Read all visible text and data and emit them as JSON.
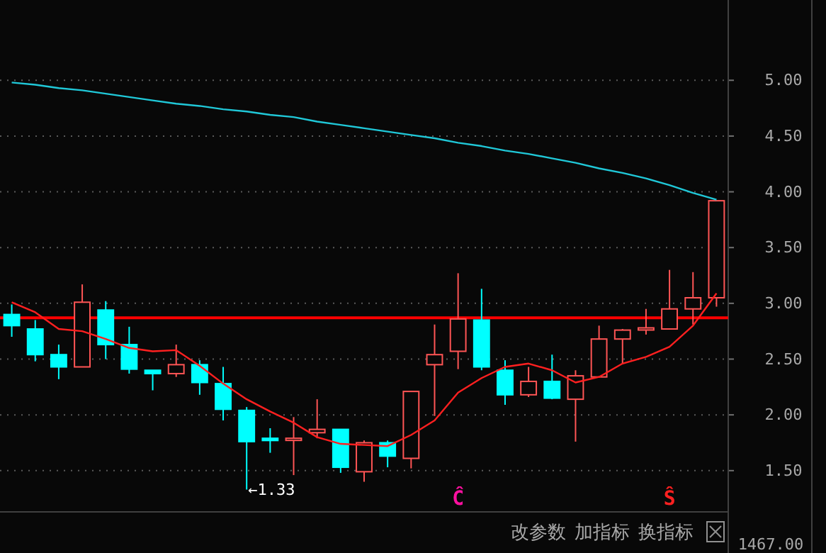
{
  "chart_data": {
    "type": "candlestick",
    "categories": [
      null,
      null,
      null,
      null,
      null,
      null,
      null,
      null,
      null,
      null,
      null,
      null,
      null,
      null,
      null,
      null,
      null,
      null,
      null,
      null,
      null,
      null,
      null,
      null,
      null,
      null,
      null,
      null,
      null,
      null,
      null
    ],
    "ohlc": [
      [
        2.9,
        2.99,
        2.7,
        2.8
      ],
      [
        2.77,
        2.85,
        2.48,
        2.54
      ],
      [
        2.54,
        2.63,
        2.32,
        2.43
      ],
      [
        2.43,
        3.17,
        2.43,
        3.01
      ],
      [
        2.94,
        3.02,
        2.5,
        2.63
      ],
      [
        2.63,
        2.79,
        2.37,
        2.41
      ],
      [
        2.4,
        2.4,
        2.22,
        2.37
      ],
      [
        2.37,
        2.63,
        2.34,
        2.45
      ],
      [
        2.45,
        2.49,
        2.18,
        2.29
      ],
      [
        2.28,
        2.43,
        1.95,
        2.05
      ],
      [
        2.04,
        2.07,
        1.33,
        1.76
      ],
      [
        1.79,
        1.88,
        1.66,
        1.77
      ],
      [
        1.78,
        1.98,
        1.46,
        1.79
      ],
      [
        1.84,
        2.14,
        1.79,
        1.87
      ],
      [
        1.87,
        1.87,
        1.48,
        1.53
      ],
      [
        1.49,
        1.77,
        1.4,
        1.75
      ],
      [
        1.75,
        1.77,
        1.53,
        1.63
      ],
      [
        1.61,
        2.21,
        1.52,
        2.21
      ],
      [
        2.45,
        2.81,
        1.99,
        2.54
      ],
      [
        2.57,
        3.27,
        2.41,
        2.86
      ],
      [
        2.85,
        3.13,
        2.4,
        2.43
      ],
      [
        2.4,
        2.49,
        2.09,
        2.18
      ],
      [
        2.18,
        2.43,
        2.16,
        2.3
      ],
      [
        2.3,
        2.54,
        2.14,
        2.15
      ],
      [
        2.14,
        2.4,
        1.76,
        2.35
      ],
      [
        2.34,
        2.8,
        2.34,
        2.68
      ],
      [
        2.68,
        2.77,
        2.46,
        2.76
      ],
      [
        2.77,
        2.95,
        2.72,
        2.78
      ],
      [
        2.77,
        3.3,
        2.77,
        2.95
      ],
      [
        2.95,
        3.28,
        2.81,
        3.05
      ],
      [
        3.05,
        3.92,
        2.97,
        3.92
      ]
    ],
    "colors": [
      "#00ffff",
      "#00ffff",
      "#00ffff",
      "#ff5555",
      "#00ffff",
      "#00ffff",
      "#00ffff",
      "#ff5555",
      "#00ffff",
      "#00ffff",
      "#00ffff",
      "#00ffff",
      "#ff5555",
      "#ff5555",
      "#00ffff",
      "#ff5555",
      "#00ffff",
      "#ff5555",
      "#ff5555",
      "#ff5555",
      "#00ffff",
      "#00ffff",
      "#ff5555",
      "#00ffff",
      "#ff5555",
      "#ff5555",
      "#ff5555",
      "#ff5555",
      "#ff5555",
      "#ff5555",
      "#ff5555"
    ],
    "series": [
      {
        "type": "line",
        "color": "#ff2020",
        "values": [
          3.01,
          2.92,
          2.77,
          2.75,
          2.68,
          2.6,
          2.57,
          2.58,
          2.44,
          2.28,
          2.14,
          2.03,
          1.93,
          1.8,
          1.74,
          1.73,
          1.72,
          1.82,
          1.95,
          2.2,
          2.33,
          2.43,
          2.46,
          2.4,
          2.29,
          2.34,
          2.46,
          2.52,
          2.61,
          2.8,
          3.09
        ]
      },
      {
        "type": "line",
        "color": "#20c8d8",
        "values": [
          4.98,
          4.96,
          4.93,
          4.91,
          4.88,
          4.85,
          4.82,
          4.79,
          4.77,
          4.74,
          4.72,
          4.69,
          4.67,
          4.63,
          4.6,
          4.57,
          4.54,
          4.51,
          4.48,
          4.44,
          4.41,
          4.37,
          4.34,
          4.3,
          4.26,
          4.21,
          4.17,
          4.12,
          4.06,
          3.99,
          3.93
        ]
      }
    ],
    "ylim": [
      1.13,
      5.72
    ],
    "yticks": [
      {
        "value": 1.5,
        "label": "1.50"
      },
      {
        "value": 2,
        "label": "2.00"
      },
      {
        "value": 2.5,
        "label": "2.50"
      },
      {
        "value": 3,
        "label": "3.00"
      },
      {
        "value": 3.5,
        "label": "3.50"
      },
      {
        "value": 4,
        "label": "4.00"
      },
      {
        "value": 4.5,
        "label": "4.50"
      },
      {
        "value": 5,
        "label": "5.00"
      }
    ],
    "grid": "y",
    "tick_labels": "y",
    "ref_lines": [
      {
        "axis": "y",
        "value": 2.87,
        "color": "#ff0000"
      }
    ],
    "annotations": [
      "←1.33",
      "Ĉ",
      "Ŝ",
      "改参数",
      "加指标",
      "换指标",
      "1467.00"
    ]
  }
}
